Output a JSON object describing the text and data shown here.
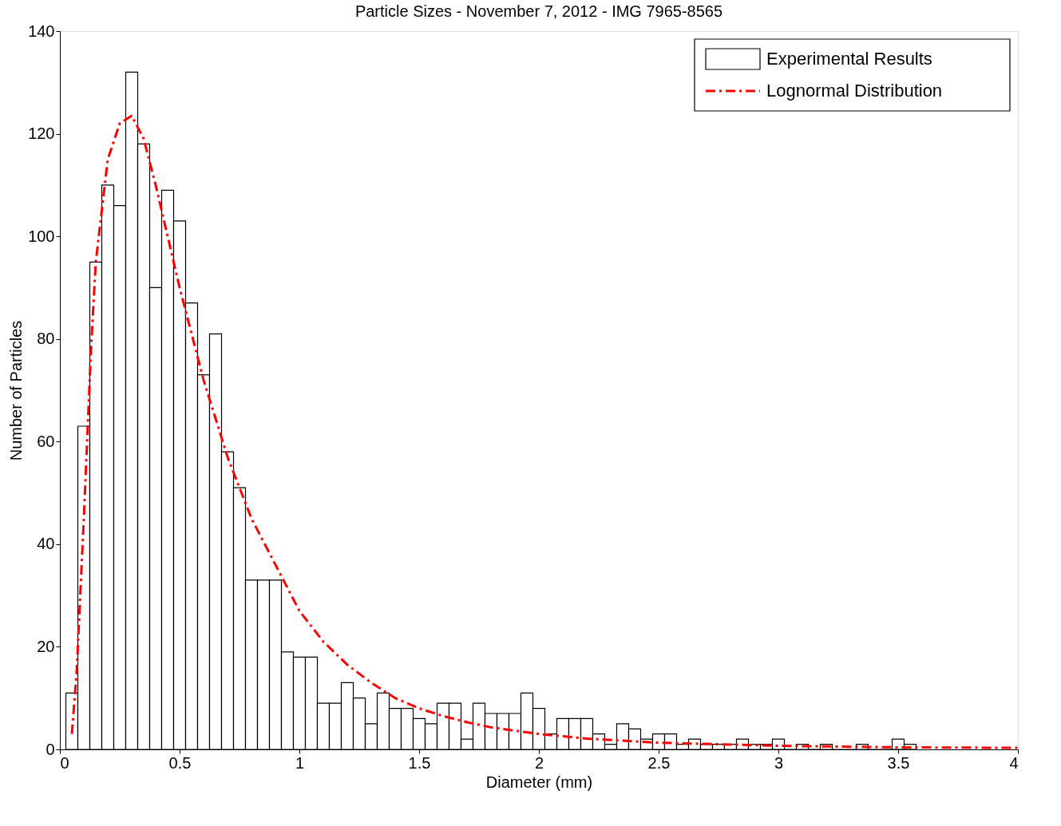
{
  "chart_data": {
    "type": "histogram",
    "title": "Particle Sizes - November 7, 2012 - IMG 7965-8565",
    "xlabel": "Diameter (mm)",
    "ylabel": "Number of Particles",
    "xlim": [
      0,
      4
    ],
    "xticks": [
      0,
      0.5,
      1,
      1.5,
      2,
      2.5,
      3,
      3.5,
      4
    ],
    "ylim": [
      0,
      140
    ],
    "yticks": [
      0,
      20,
      40,
      60,
      80,
      100,
      120,
      140
    ],
    "grid": false,
    "legend": "top right",
    "series": [
      {
        "name": "Experimental Results",
        "color": "#000000",
        "bins": [
          0.025,
          0.075,
          0.125,
          0.175,
          0.225,
          0.275,
          0.325,
          0.375,
          0.425,
          0.475,
          0.525,
          0.575,
          0.625,
          0.675,
          0.725,
          0.775,
          0.825,
          0.875,
          0.925,
          0.975,
          1.025,
          1.075,
          1.125,
          1.175,
          1.225,
          1.275,
          1.325,
          1.375,
          1.425,
          1.475,
          1.525,
          1.575,
          1.625,
          1.675,
          1.725,
          1.775,
          1.825,
          1.875,
          1.925,
          1.975,
          2.025,
          2.075,
          2.125,
          2.175,
          2.225,
          2.275,
          2.325,
          2.375,
          2.425,
          2.475,
          2.525,
          2.575,
          2.625,
          2.675,
          2.725,
          2.775,
          2.825,
          2.875,
          2.925,
          2.975,
          3.025,
          3.075,
          3.125,
          3.175,
          3.225,
          3.275,
          3.325,
          3.375,
          3.425,
          3.475,
          3.525,
          3.575
        ],
        "values": [
          11,
          63,
          95,
          110,
          106,
          132,
          118,
          90,
          109,
          103,
          87,
          73,
          81,
          58,
          51,
          33,
          33,
          33,
          19,
          18,
          18,
          9,
          9,
          13,
          10,
          5,
          11,
          8,
          8,
          6,
          5,
          9,
          9,
          2,
          9,
          7,
          7,
          7,
          11,
          8,
          3,
          6,
          6,
          6,
          3,
          1,
          5,
          4,
          2,
          3,
          3,
          1,
          2,
          1,
          1,
          1,
          2,
          1,
          1,
          2,
          0,
          1,
          0,
          1,
          0,
          0,
          1,
          0,
          0,
          2,
          1
        ]
      },
      {
        "name": "Lognormal Distribution",
        "type": "line",
        "color": "#ff0000",
        "line_style": "dashdot",
        "marker": "none",
        "x": [
          0.05,
          0.07,
          0.1,
          0.13,
          0.15,
          0.2,
          0.25,
          0.3,
          0.35,
          0.4,
          0.45,
          0.5,
          0.6,
          0.7,
          0.8,
          0.9,
          1.0,
          1.1,
          1.2,
          1.3,
          1.4,
          1.5,
          1.6,
          1.7,
          1.8,
          2.0,
          2.2,
          2.5,
          3.0,
          3.5,
          4.0
        ],
        "values": [
          3,
          15,
          45,
          78,
          95,
          115,
          122,
          123.5,
          119,
          110,
          100,
          90,
          72,
          57,
          45,
          36,
          27,
          21,
          16.5,
          13,
          10,
          8,
          6.5,
          5.3,
          4.3,
          3,
          2.1,
          1.3,
          0.7,
          0.4,
          0.3
        ]
      }
    ]
  }
}
